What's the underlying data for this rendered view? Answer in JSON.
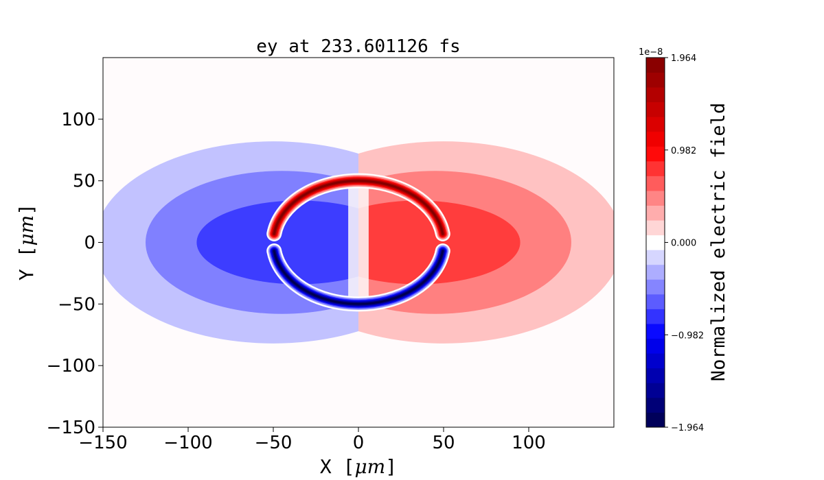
{
  "chart_data": {
    "type": "heatmap",
    "title": "ey at 233.601126 fs",
    "xlabel": "X [$\\mu m$]",
    "ylabel": "Y [$\\mu m$]",
    "xlabel_text": "X [",
    "xlabel_unit": "μm",
    "ylabel_text": "Y [",
    "ylabel_unit": "μm",
    "label_close": "]",
    "xlim": [
      -150,
      150
    ],
    "ylim": [
      -150,
      150
    ],
    "xticks": [
      -150,
      -100,
      -50,
      0,
      50,
      100
    ],
    "yticks": [
      -150,
      -100,
      -50,
      0,
      50,
      100
    ],
    "xtick_labels": [
      "−150",
      "−100",
      "−50",
      "0",
      "50",
      "100"
    ],
    "ytick_labels": [
      "−150",
      "−100",
      "−50",
      "0",
      "50",
      "100"
    ],
    "colorbar": {
      "label": "Normalized electric field",
      "scale_label": "1e−8",
      "vmin": -1.964,
      "vmax": 1.964,
      "ticks": [
        1.964,
        0.982,
        0.0,
        -0.982,
        -1.964
      ],
      "tick_labels": [
        "1.964",
        "0.982",
        "0.000",
        "−0.982",
        "−1.964"
      ],
      "levels": 25,
      "colormap": "seismic"
    },
    "regions": [
      {
        "name": "outer negative lobe",
        "cx": -50,
        "cy": 0,
        "rx": 105,
        "ry": 82,
        "value": -0.12
      },
      {
        "name": "mid negative lobe",
        "cx": -45,
        "cy": 0,
        "rx": 80,
        "ry": 58,
        "value": -0.25
      },
      {
        "name": "inner negative lobe",
        "cx": -35,
        "cy": 0,
        "rx": 60,
        "ry": 34,
        "value": -0.38
      },
      {
        "name": "outer positive lobe",
        "cx": 50,
        "cy": 0,
        "rx": 105,
        "ry": 82,
        "value": 0.12
      },
      {
        "name": "mid positive lobe",
        "cx": 45,
        "cy": 0,
        "rx": 80,
        "ry": 58,
        "value": 0.25
      },
      {
        "name": "inner positive lobe",
        "cx": 35,
        "cy": 0,
        "rx": 60,
        "ry": 34,
        "value": 0.38
      },
      {
        "name": "upper arc (positive peak)",
        "center_x": 0,
        "center_y": 0,
        "radius": 50,
        "angle_from": 8,
        "angle_to": 172,
        "peak_value": 1.964
      },
      {
        "name": "lower arc (negative peak)",
        "center_x": 0,
        "center_y": 0,
        "radius": 50,
        "angle_from": 188,
        "angle_to": 352,
        "peak_value": -1.964
      }
    ],
    "grid": false
  }
}
